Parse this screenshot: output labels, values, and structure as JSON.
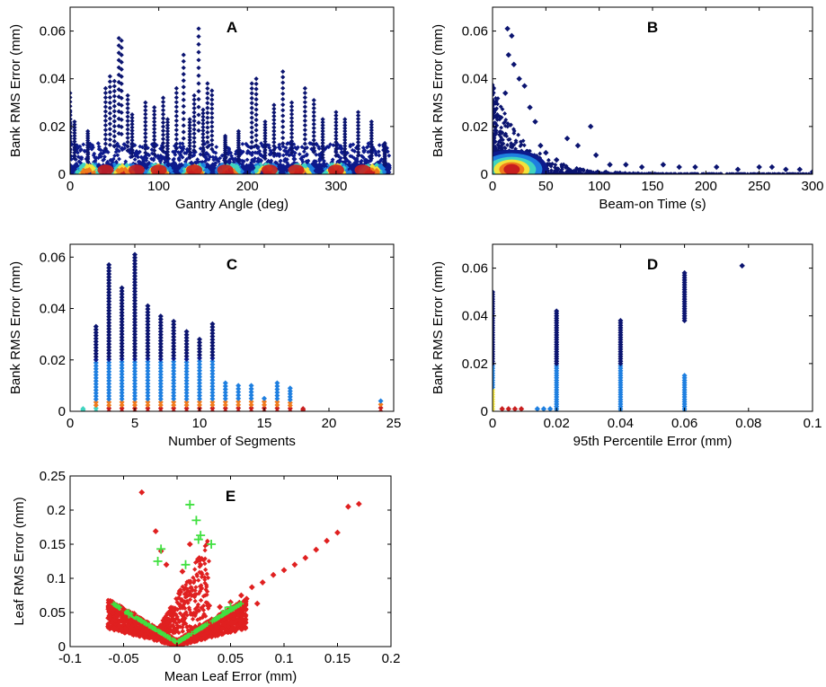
{
  "colors": {
    "density_low": "#0d1a8c",
    "density_mid_low": "#1e7fe0",
    "density_mid": "#3fd4c0",
    "density_mid_high": "#f2e33a",
    "density_high": "#f07a1c",
    "density_peak": "#c81e1e",
    "marker_dark": "#0b1470",
    "leaf_red": "#e02020",
    "leaf_green": "#40e040"
  },
  "chart_data": [
    {
      "id": "A",
      "type": "scatter",
      "panel_label": "A",
      "xlabel": "Gantry Angle (deg)",
      "ylabel": "Bank RMS Error (mm)",
      "xlim": [
        0,
        365
      ],
      "ylim": [
        0,
        0.07
      ],
      "xticks": [
        "0",
        "100",
        "200",
        "300"
      ],
      "xtick_values": [
        0,
        100,
        200,
        300
      ],
      "yticks": [
        "0",
        "0.02",
        "0.04",
        "0.06"
      ],
      "ytick_values": [
        0,
        0.02,
        0.04,
        0.06
      ],
      "density_band": true,
      "outliers": [
        {
          "x": 0,
          "y": 0.034
        },
        {
          "x": 0,
          "y": 0.026
        },
        {
          "x": 5,
          "y": 0.022
        },
        {
          "x": 20,
          "y": 0.018
        },
        {
          "x": 40,
          "y": 0.036
        },
        {
          "x": 45,
          "y": 0.041
        },
        {
          "x": 50,
          "y": 0.039
        },
        {
          "x": 55,
          "y": 0.057
        },
        {
          "x": 58,
          "y": 0.056
        },
        {
          "x": 65,
          "y": 0.033
        },
        {
          "x": 70,
          "y": 0.025
        },
        {
          "x": 85,
          "y": 0.03
        },
        {
          "x": 95,
          "y": 0.028
        },
        {
          "x": 105,
          "y": 0.032
        },
        {
          "x": 110,
          "y": 0.023
        },
        {
          "x": 120,
          "y": 0.036
        },
        {
          "x": 128,
          "y": 0.05
        },
        {
          "x": 135,
          "y": 0.023
        },
        {
          "x": 140,
          "y": 0.033
        },
        {
          "x": 145,
          "y": 0.061
        },
        {
          "x": 150,
          "y": 0.027
        },
        {
          "x": 155,
          "y": 0.038
        },
        {
          "x": 160,
          "y": 0.035
        },
        {
          "x": 175,
          "y": 0.016
        },
        {
          "x": 190,
          "y": 0.018
        },
        {
          "x": 205,
          "y": 0.038
        },
        {
          "x": 210,
          "y": 0.04
        },
        {
          "x": 220,
          "y": 0.022
        },
        {
          "x": 230,
          "y": 0.029
        },
        {
          "x": 240,
          "y": 0.043
        },
        {
          "x": 250,
          "y": 0.03
        },
        {
          "x": 265,
          "y": 0.036
        },
        {
          "x": 275,
          "y": 0.031
        },
        {
          "x": 285,
          "y": 0.023
        },
        {
          "x": 300,
          "y": 0.026
        },
        {
          "x": 310,
          "y": 0.023
        },
        {
          "x": 325,
          "y": 0.026
        },
        {
          "x": 340,
          "y": 0.022
        },
        {
          "x": 355,
          "y": 0.013
        }
      ]
    },
    {
      "id": "B",
      "type": "scatter",
      "panel_label": "B",
      "xlabel": "Beam-on Time (s)",
      "ylabel": "Bank RMS Error (mm)",
      "xlim": [
        0,
        300
      ],
      "ylim": [
        0,
        0.07
      ],
      "xticks": [
        "0",
        "50",
        "100",
        "150",
        "200",
        "250",
        "300"
      ],
      "xtick_values": [
        0,
        50,
        100,
        150,
        200,
        250,
        300
      ],
      "yticks": [
        "0",
        "0.02",
        "0.04",
        "0.06"
      ],
      "ytick_values": [
        0,
        0.02,
        0.04,
        0.06
      ],
      "density_peak": {
        "x": 18,
        "y": 0.002
      },
      "outliers": [
        {
          "x": 14,
          "y": 0.061
        },
        {
          "x": 18,
          "y": 0.058
        },
        {
          "x": 15,
          "y": 0.05
        },
        {
          "x": 20,
          "y": 0.046
        },
        {
          "x": 25,
          "y": 0.04
        },
        {
          "x": 30,
          "y": 0.037
        },
        {
          "x": 12,
          "y": 0.034
        },
        {
          "x": 35,
          "y": 0.028
        },
        {
          "x": 40,
          "y": 0.022
        },
        {
          "x": 45,
          "y": 0.012
        },
        {
          "x": 50,
          "y": 0.009
        },
        {
          "x": 60,
          "y": 0.006
        },
        {
          "x": 70,
          "y": 0.015
        },
        {
          "x": 80,
          "y": 0.012
        },
        {
          "x": 92,
          "y": 0.02
        },
        {
          "x": 97,
          "y": 0.008
        },
        {
          "x": 110,
          "y": 0.004
        },
        {
          "x": 125,
          "y": 0.004
        },
        {
          "x": 140,
          "y": 0.003
        },
        {
          "x": 160,
          "y": 0.004
        },
        {
          "x": 175,
          "y": 0.003
        },
        {
          "x": 190,
          "y": 0.003
        },
        {
          "x": 210,
          "y": 0.003
        },
        {
          "x": 230,
          "y": 0.002
        },
        {
          "x": 250,
          "y": 0.003
        },
        {
          "x": 262,
          "y": 0.003
        },
        {
          "x": 275,
          "y": 0.002
        },
        {
          "x": 288,
          "y": 0.002
        },
        {
          "x": 300,
          "y": 0.001
        }
      ]
    },
    {
      "id": "C",
      "type": "scatter",
      "panel_label": "C",
      "xlabel": "Number of Segments",
      "ylabel": "Bank RMS Error (mm)",
      "xlim": [
        0,
        25
      ],
      "ylim": [
        0,
        0.065
      ],
      "xticks": [
        "0",
        "5",
        "10",
        "15",
        "20",
        "25"
      ],
      "xtick_values": [
        0,
        5,
        10,
        15,
        20,
        25
      ],
      "yticks": [
        "0",
        "0.02",
        "0.04",
        "0.06"
      ],
      "ytick_values": [
        0,
        0.02,
        0.04,
        0.06
      ],
      "columns": [
        {
          "x": 1,
          "max": 0.001
        },
        {
          "x": 2,
          "max": 0.033
        },
        {
          "x": 3,
          "max": 0.057
        },
        {
          "x": 4,
          "max": 0.048
        },
        {
          "x": 5,
          "max": 0.061
        },
        {
          "x": 6,
          "max": 0.041
        },
        {
          "x": 7,
          "max": 0.037
        },
        {
          "x": 8,
          "max": 0.035
        },
        {
          "x": 9,
          "max": 0.031
        },
        {
          "x": 10,
          "max": 0.028
        },
        {
          "x": 11,
          "max": 0.034
        },
        {
          "x": 12,
          "max": 0.011
        },
        {
          "x": 13,
          "max": 0.01
        },
        {
          "x": 14,
          "max": 0.01
        },
        {
          "x": 15,
          "max": 0.005
        },
        {
          "x": 16,
          "max": 0.011
        },
        {
          "x": 17,
          "max": 0.009
        },
        {
          "x": 18,
          "max": 0.001
        },
        {
          "x": 24,
          "max": 0.004
        }
      ]
    },
    {
      "id": "D",
      "type": "scatter",
      "panel_label": "D",
      "xlabel": "95th Percentile Error (mm)",
      "ylabel": "Bank RMS Error (mm)",
      "xlim": [
        0,
        0.1
      ],
      "ylim": [
        0,
        0.07
      ],
      "xticks": [
        "0",
        "0.02",
        "0.04",
        "0.06",
        "0.08",
        "0.1"
      ],
      "xtick_values": [
        0,
        0.02,
        0.04,
        0.06,
        0.08,
        0.1
      ],
      "yticks": [
        "0",
        "0.02",
        "0.04",
        "0.06"
      ],
      "ytick_values": [
        0,
        0.02,
        0.04,
        0.06
      ],
      "columns": [
        {
          "x": 0,
          "max": 0.05
        },
        {
          "x": 0.02,
          "max": 0.042
        },
        {
          "x": 0.04,
          "max": 0.038
        },
        {
          "x": 0.06,
          "max": 0.058
        }
      ],
      "low_points": [
        {
          "x": 0.003,
          "y": 0.001
        },
        {
          "x": 0.005,
          "y": 0.001
        },
        {
          "x": 0.007,
          "y": 0.001
        },
        {
          "x": 0.009,
          "y": 0.001
        },
        {
          "x": 0.014,
          "y": 0.001
        },
        {
          "x": 0.016,
          "y": 0.001
        },
        {
          "x": 0.018,
          "y": 0.001
        }
      ],
      "outliers": [
        {
          "x": 0.078,
          "y": 0.061
        }
      ]
    },
    {
      "id": "E",
      "type": "scatter",
      "panel_label": "E",
      "xlabel": "Mean Leaf Error (mm)",
      "ylabel": "Leaf RMS Error (mm)",
      "xlim": [
        -0.1,
        0.2
      ],
      "ylim": [
        0,
        0.25
      ],
      "xticks": [
        "-0.1",
        "-0.05",
        "0",
        "0.05",
        "0.1",
        "0.15",
        "0.2"
      ],
      "xtick_values": [
        -0.1,
        -0.05,
        0,
        0.05,
        0.1,
        0.15,
        0.2
      ],
      "yticks": [
        "0",
        "0.05",
        "0.1",
        "0.15",
        "0.2",
        "0.25"
      ],
      "ytick_values": [
        0,
        0.05,
        0.1,
        0.15,
        0.2,
        0.25
      ],
      "series": [
        {
          "color": "#e02020",
          "marker": "diamond",
          "points": [
            {
              "x": -0.033,
              "y": 0.226
            },
            {
              "x": -0.02,
              "y": 0.169
            },
            {
              "x": -0.015,
              "y": 0.14
            },
            {
              "x": -0.01,
              "y": 0.12
            },
            {
              "x": 0.005,
              "y": 0.11
            },
            {
              "x": 0.012,
              "y": 0.15
            },
            {
              "x": 0.03,
              "y": 0.06
            },
            {
              "x": 0.04,
              "y": 0.058
            },
            {
              "x": 0.05,
              "y": 0.065
            },
            {
              "x": 0.06,
              "y": 0.075
            },
            {
              "x": 0.07,
              "y": 0.087
            },
            {
              "x": 0.08,
              "y": 0.094
            },
            {
              "x": 0.09,
              "y": 0.105
            },
            {
              "x": 0.1,
              "y": 0.112
            },
            {
              "x": 0.11,
              "y": 0.12
            },
            {
              "x": 0.12,
              "y": 0.13
            },
            {
              "x": 0.13,
              "y": 0.142
            },
            {
              "x": 0.14,
              "y": 0.155
            },
            {
              "x": 0.15,
              "y": 0.167
            },
            {
              "x": 0.16,
              "y": 0.205
            },
            {
              "x": 0.17,
              "y": 0.209
            },
            {
              "x": -0.05,
              "y": 0.055
            },
            {
              "x": -0.04,
              "y": 0.048
            },
            {
              "x": 0.075,
              "y": 0.063
            },
            {
              "x": 0.065,
              "y": 0.07
            }
          ]
        },
        {
          "color": "#40e040",
          "marker": "plus",
          "points": [
            {
              "x": -0.015,
              "y": 0.143
            },
            {
              "x": 0.012,
              "y": 0.208
            },
            {
              "x": 0.018,
              "y": 0.185
            },
            {
              "x": 0.02,
              "y": 0.157
            },
            {
              "x": 0.022,
              "y": 0.163
            },
            {
              "x": 0.032,
              "y": 0.15
            },
            {
              "x": 0.008,
              "y": 0.12
            },
            {
              "x": -0.018,
              "y": 0.125
            },
            {
              "x": -0.045,
              "y": 0.048
            },
            {
              "x": 0.045,
              "y": 0.052
            },
            {
              "x": 0.05,
              "y": 0.058
            }
          ]
        }
      ]
    }
  ]
}
